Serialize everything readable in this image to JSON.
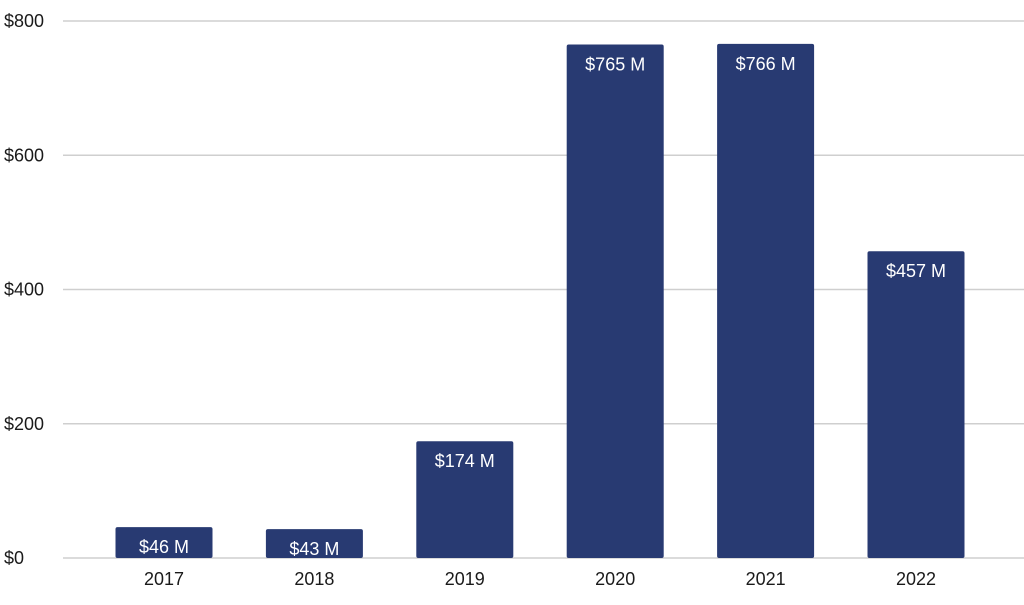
{
  "colors": {
    "bar": "#283a72",
    "grid": "#cfcfcf",
    "text": "#1a1a1a",
    "label_text": "#ffffff"
  },
  "chart_data": {
    "type": "bar",
    "categories": [
      "2017",
      "2018",
      "2019",
      "2020",
      "2021",
      "2022"
    ],
    "values": [
      46,
      43,
      174,
      765,
      766,
      457
    ],
    "data_labels": [
      "$46 M",
      "$43 M",
      "$174 M",
      "$765 M",
      "$766 M",
      "$457 M"
    ],
    "y_ticks": [
      0,
      200,
      400,
      600,
      800
    ],
    "y_tick_labels": [
      "$0",
      "$200",
      "$400",
      "$600",
      "$800"
    ],
    "ylim": [
      0,
      800
    ],
    "grid": true,
    "legend": "none"
  }
}
